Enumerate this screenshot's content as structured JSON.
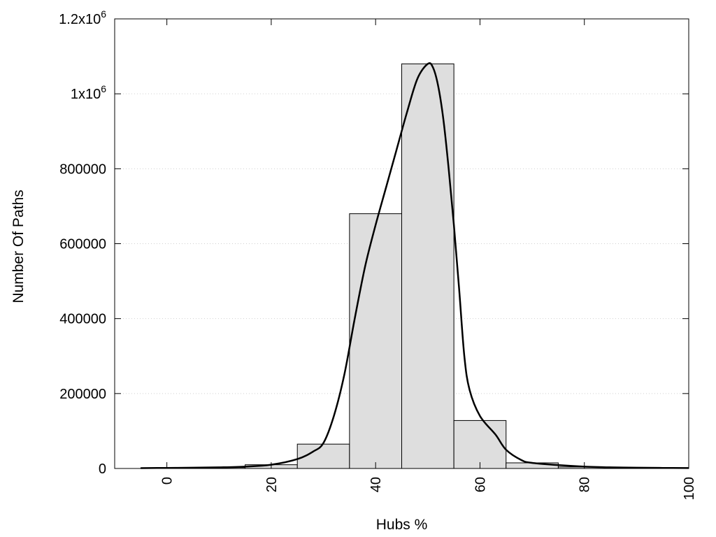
{
  "chart_data": {
    "type": "bar",
    "xlabel": "Hubs %",
    "ylabel": "Number Of Paths",
    "xlim": [
      -10,
      100
    ],
    "ylim": [
      0,
      1200000
    ],
    "grid": "horizontal-dotted",
    "legend": "none",
    "x_ticks": [
      {
        "value": 0,
        "label": "0"
      },
      {
        "value": 20,
        "label": "20"
      },
      {
        "value": 40,
        "label": "40"
      },
      {
        "value": 60,
        "label": "60"
      },
      {
        "value": 80,
        "label": "80"
      },
      {
        "value": 100,
        "label": "100"
      }
    ],
    "y_ticks": [
      {
        "value": 0,
        "base": "0",
        "exp": ""
      },
      {
        "value": 200000,
        "base": "200000",
        "exp": ""
      },
      {
        "value": 400000,
        "base": "400000",
        "exp": ""
      },
      {
        "value": 600000,
        "base": "600000",
        "exp": ""
      },
      {
        "value": 800000,
        "base": "800000",
        "exp": ""
      },
      {
        "value": 1000000,
        "base": "1x10",
        "exp": "6"
      },
      {
        "value": 1200000,
        "base": "1.2x10",
        "exp": "6"
      }
    ],
    "bin_width": 10,
    "bins": [
      {
        "x": 0,
        "value": 1500
      },
      {
        "x": 10,
        "value": 2500
      },
      {
        "x": 20,
        "value": 10000
      },
      {
        "x": 30,
        "value": 65000
      },
      {
        "x": 40,
        "value": 680000
      },
      {
        "x": 50,
        "value": 1080000
      },
      {
        "x": 60,
        "value": 128000
      },
      {
        "x": 70,
        "value": 15000
      },
      {
        "x": 80,
        "value": 4000
      },
      {
        "x": 90,
        "value": 1500
      }
    ],
    "curve": [
      [
        -5,
        1000
      ],
      [
        0,
        1500
      ],
      [
        5,
        2000
      ],
      [
        10,
        3000
      ],
      [
        15,
        5000
      ],
      [
        20,
        10000
      ],
      [
        25,
        25000
      ],
      [
        28,
        45000
      ],
      [
        30,
        68000
      ],
      [
        32,
        140000
      ],
      [
        34,
        250000
      ],
      [
        36,
        400000
      ],
      [
        38,
        540000
      ],
      [
        40,
        650000
      ],
      [
        42,
        750000
      ],
      [
        44,
        850000
      ],
      [
        46,
        950000
      ],
      [
        48,
        1040000
      ],
      [
        50,
        1080000
      ],
      [
        51,
        1070000
      ],
      [
        52,
        1020000
      ],
      [
        53,
        930000
      ],
      [
        54,
        800000
      ],
      [
        55,
        650000
      ],
      [
        56,
        480000
      ],
      [
        57,
        300000
      ],
      [
        58,
        210000
      ],
      [
        60,
        140000
      ],
      [
        63,
        90000
      ],
      [
        65,
        50000
      ],
      [
        68,
        22000
      ],
      [
        70,
        15000
      ],
      [
        75,
        9000
      ],
      [
        80,
        5000
      ],
      [
        85,
        3000
      ],
      [
        90,
        2000
      ],
      [
        95,
        1500
      ],
      [
        100,
        1200
      ]
    ],
    "colors": {
      "bar_fill": "#dedede",
      "bar_stroke": "#000000",
      "curve": "#000000",
      "grid": "#cfcfcf"
    }
  }
}
